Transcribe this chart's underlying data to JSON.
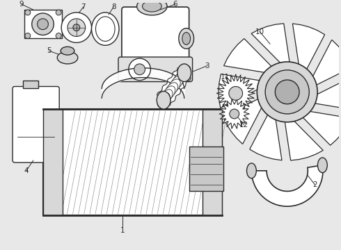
{
  "bg_color": "#e8e8e8",
  "line_color": "#2a2a2a",
  "lw": 1.0,
  "fig_w": 4.9,
  "fig_h": 3.6,
  "dpi": 100
}
